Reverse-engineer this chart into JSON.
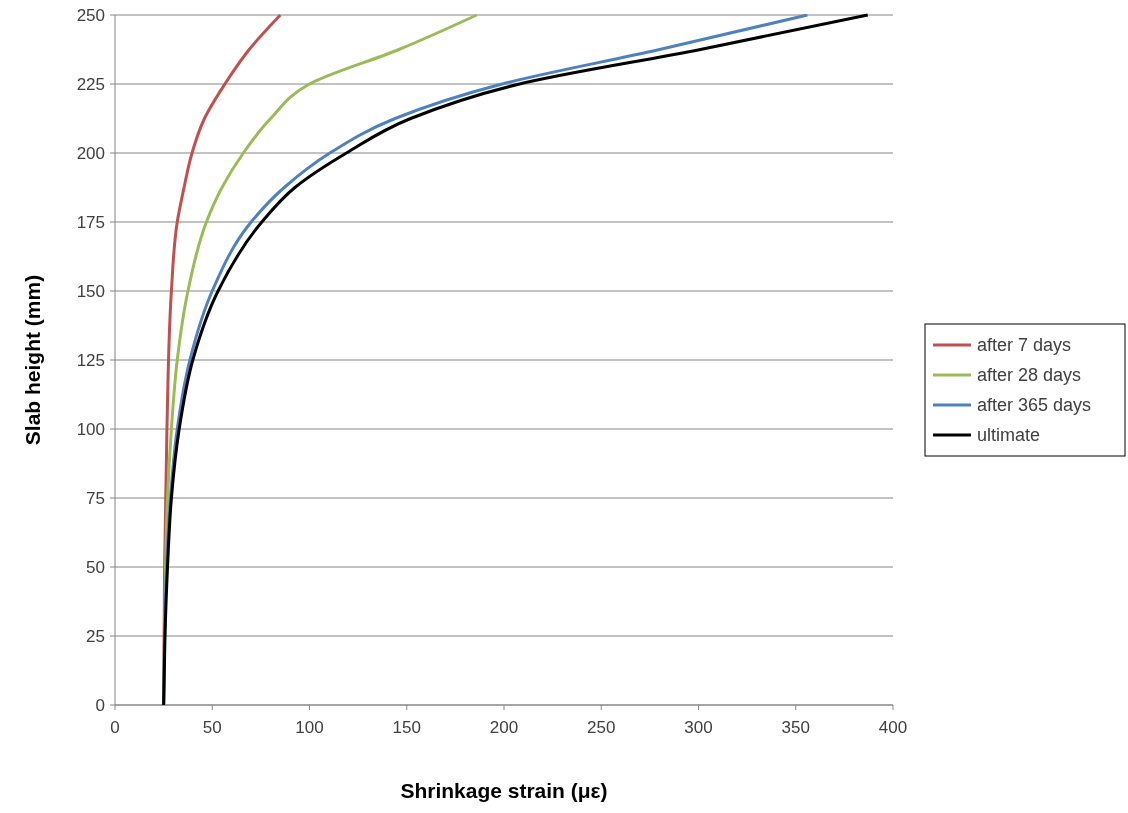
{
  "chart_data": {
    "type": "line",
    "xlabel": "Shrinkage strain (με)",
    "ylabel": "Slab height (mm)",
    "xlim": [
      0,
      400
    ],
    "xticks": [
      0,
      50,
      100,
      150,
      200,
      250,
      300,
      350,
      400
    ],
    "ylim": [
      0,
      250
    ],
    "yticks": [
      0,
      25,
      50,
      75,
      100,
      125,
      150,
      175,
      200,
      225,
      250
    ],
    "grid": "y",
    "legend": "right",
    "marker": "none",
    "line_style": "solid",
    "series": [
      {
        "name": "after 7 days",
        "color": "#c0504d",
        "x": [
          25,
          25.5,
          26.7,
          29,
          32,
          35.5,
          39.6,
          46,
          56.5,
          69,
          85
        ],
        "values": [
          0,
          50,
          100,
          150,
          175,
          187.5,
          200,
          212.5,
          225,
          237.5,
          250
        ]
      },
      {
        "name": "after 28 days",
        "color": "#9bbb59",
        "x": [
          25,
          26,
          27,
          29,
          32,
          37.5,
          47,
          55,
          66,
          80,
          100,
          146,
          186
        ],
        "values": [
          0,
          50,
          75,
          100,
          125,
          150,
          175,
          187.5,
          200,
          212.5,
          225,
          237.5,
          250
        ]
      },
      {
        "name": "after 365 days",
        "color": "#4f81bd",
        "x": [
          25,
          26.5,
          28.5,
          32,
          38.5,
          50,
          70,
          87,
          110.5,
          144,
          199,
          280,
          356
        ],
        "values": [
          0,
          50,
          75,
          100,
          125,
          150,
          175,
          187.5,
          200,
          212.5,
          225,
          237.5,
          250
        ]
      },
      {
        "name": "ultimate",
        "color": "#000000",
        "x": [
          25,
          25.7,
          27,
          29,
          33,
          40,
          53,
          75.5,
          92.5,
          119,
          152,
          208,
          301,
          387
        ],
        "values": [
          0,
          25,
          50,
          75,
          100,
          125,
          150,
          175,
          187.5,
          200,
          212.5,
          225,
          237.5,
          250
        ]
      }
    ]
  }
}
